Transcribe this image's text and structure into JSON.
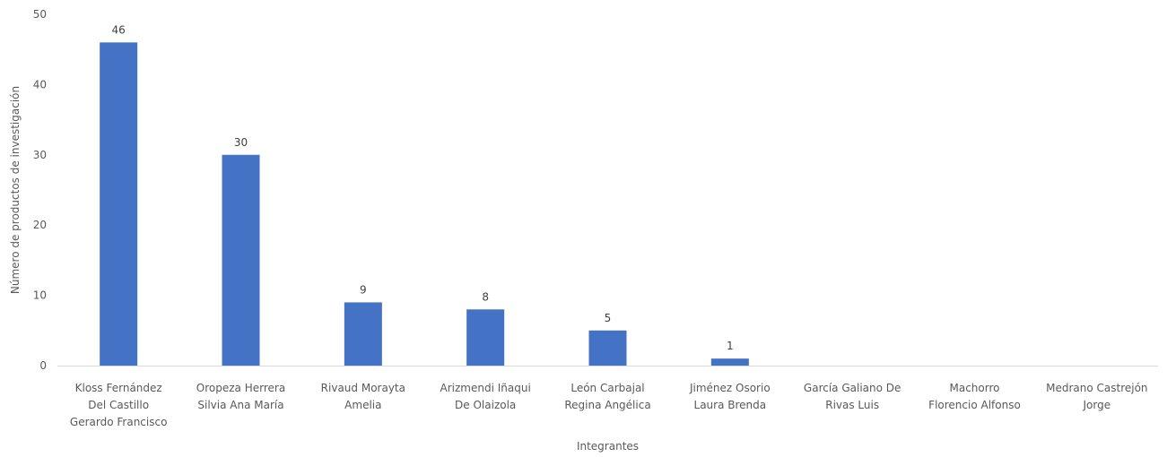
{
  "chart_data": {
    "type": "bar",
    "title": "",
    "xlabel": "Integrantes",
    "ylabel": "Número de productos de investigación",
    "ylim": [
      0,
      50
    ],
    "yticks": [
      0,
      10,
      20,
      30,
      40,
      50
    ],
    "grid": false,
    "legend": "none",
    "bar_color": "#4472C4",
    "categories": [
      [
        "Kloss Fernández",
        "Del Castillo",
        "Gerardo Francisco"
      ],
      [
        "Oropeza Herrera",
        "Silvia Ana María"
      ],
      [
        "Rivaud Morayta",
        "Amelia"
      ],
      [
        "Arizmendi Iñaqui",
        "De Olaizola"
      ],
      [
        "León Carbajal",
        "Regina Angélica"
      ],
      [
        "Jiménez Osorio",
        "Laura Brenda"
      ],
      [
        "García Galiano De",
        "Rivas Luis"
      ],
      [
        "Machorro",
        "Florencio Alfonso"
      ],
      [
        "Medrano Castrejón",
        "Jorge"
      ]
    ],
    "values": [
      46,
      30,
      9,
      8,
      5,
      1,
      null,
      null,
      null
    ],
    "data_labels": [
      "46",
      "30",
      "9",
      "8",
      "5",
      "1",
      "",
      "",
      ""
    ]
  }
}
